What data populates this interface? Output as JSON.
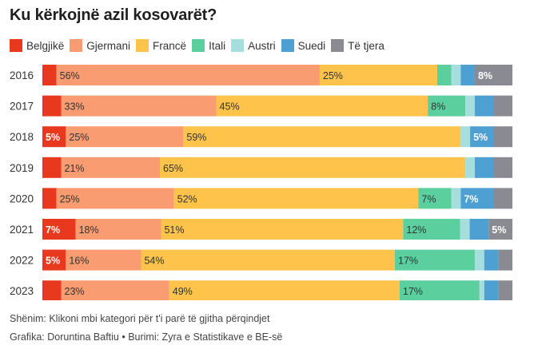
{
  "title": "Ku kërkojnë azil kosovarët?",
  "notes": {
    "line1": "Shënim: Klikoni mbi kategori për t'i parë të gjitha përqindjet",
    "line2": "Grafika: Doruntina Baftiu • Burimi: Zyra e Statistikave e BE-së"
  },
  "chart_data": {
    "type": "bar",
    "orientation": "horizontal",
    "stacked": true,
    "normalized_percent": true,
    "legend_position": "top-left",
    "categories": [
      "2016",
      "2017",
      "2018",
      "2019",
      "2020",
      "2021",
      "2022",
      "2023"
    ],
    "series": [
      {
        "name": "Belgjikë",
        "color": "#e8381e",
        "values": [
          3,
          4,
          5,
          4,
          3,
          7,
          5,
          4
        ],
        "labels": [
          "",
          "",
          "5%",
          "",
          "",
          "7%",
          "5%",
          ""
        ]
      },
      {
        "name": "Gjermani",
        "color": "#f99c72",
        "values": [
          56,
          33,
          25,
          21,
          25,
          18,
          16,
          23
        ],
        "labels": [
          "56%",
          "33%",
          "25%",
          "21%",
          "25%",
          "18%",
          "16%",
          "23%"
        ]
      },
      {
        "name": "Francë",
        "color": "#fdc34a",
        "values": [
          25,
          45,
          59,
          65,
          52,
          51,
          54,
          49
        ],
        "labels": [
          "25%",
          "45%",
          "59%",
          "65%",
          "52%",
          "51%",
          "54%",
          "49%"
        ]
      },
      {
        "name": "Itali",
        "color": "#5ccf9e",
        "values": [
          3,
          8,
          0,
          0,
          7,
          12,
          17,
          17
        ],
        "labels": [
          "",
          "8%",
          "",
          "",
          "7%",
          "12%",
          "17%",
          "17%"
        ]
      },
      {
        "name": "Austri",
        "color": "#a6dede",
        "values": [
          2,
          2,
          2,
          2,
          2,
          2,
          2,
          1
        ],
        "labels": [
          "",
          "",
          "",
          "",
          "",
          "",
          "",
          ""
        ]
      },
      {
        "name": "Suedi",
        "color": "#4e9fd2",
        "values": [
          3,
          4,
          5,
          4,
          7,
          4,
          3,
          3
        ],
        "labels": [
          "",
          "",
          "5%",
          "",
          "7%",
          "",
          "",
          ""
        ]
      },
      {
        "name": "Të tjera",
        "color": "#8a8a92",
        "values": [
          8,
          4,
          4,
          4,
          4,
          5,
          3,
          3
        ],
        "labels": [
          "8%",
          "",
          "",
          "",
          "",
          "5%",
          "",
          ""
        ]
      }
    ]
  }
}
